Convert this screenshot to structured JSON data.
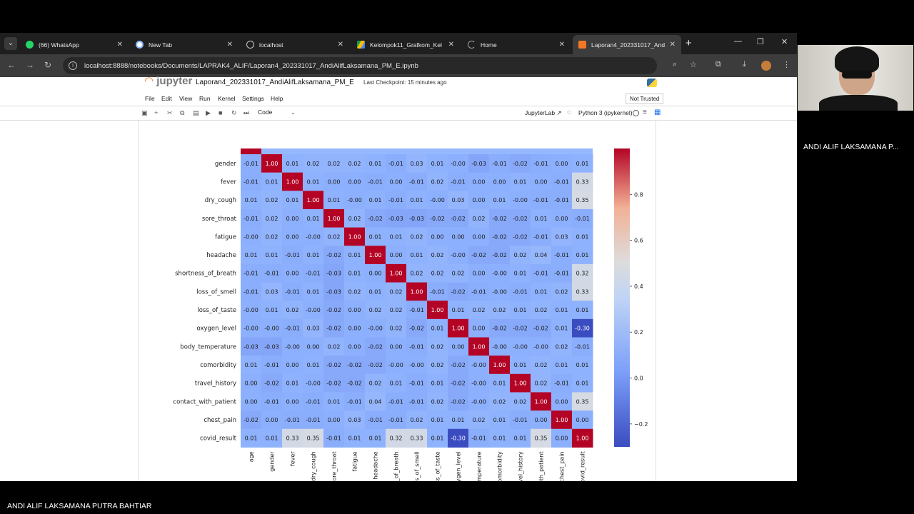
{
  "browser": {
    "tabs": [
      {
        "title": "(66) WhatsApp",
        "icon": "whatsapp-icon",
        "color": "#25d366",
        "badge": "66"
      },
      {
        "title": "New Tab",
        "icon": "chrome-icon",
        "color": "#8ab4f8"
      },
      {
        "title": "localhost",
        "icon": "globe-icon",
        "color": "#9aa0a6"
      },
      {
        "title": "Kelompok11_Grafkom_Kel",
        "icon": "drive-icon",
        "color": "#fbbc04"
      },
      {
        "title": "Home",
        "icon": "loading-icon",
        "color": "#9aa0a6"
      },
      {
        "title": "Laporan4_202331017_And",
        "icon": "jupyter-icon",
        "color": "#f37726"
      }
    ],
    "url": "localhost:8888/notebooks/Documents/LAPRAK4_ALIF/Laporan4_202331017_AndiAlifLaksamana_PM_E.ipynb"
  },
  "jupyter": {
    "logo_text": "jupyter",
    "notebook_title": "Laporan4_202331017_AndiAlifLaksamana_PM_E",
    "checkpoint": "Last Checkpoint: 15 minutes ago",
    "menu": [
      "File",
      "Edit",
      "View",
      "Run",
      "Kernel",
      "Settings",
      "Help"
    ],
    "trust_status": "Not Trusted",
    "cell_type": "Code",
    "jupyterlab_link": "JupyterLab",
    "kernel": "Python 3 (ipykernel)"
  },
  "chart_data": {
    "type": "heatmap",
    "colormap": "coolwarm",
    "labels": [
      "age",
      "gender",
      "fever",
      "dry_cough",
      "sore_throat",
      "fatigue",
      "headache",
      "shortness_of_breath",
      "loss_of_smell",
      "loss_of_taste",
      "oxygen_level",
      "body_temperature",
      "comorbidity",
      "travel_history",
      "contact_with_patient",
      "chest_pain",
      "covid_result"
    ],
    "row_labels": [
      "gender",
      "fever",
      "dry_cough",
      "sore_throat",
      "fatigue",
      "headache",
      "shortness_of_breath",
      "loss_of_smell",
      "loss_of_taste",
      "oxygen_level",
      "body_temperature",
      "comorbidity",
      "travel_history",
      "contact_with_patient",
      "chest_pain",
      "covid_result"
    ],
    "values": [
      [
        "-0.01",
        "1.00",
        "0.01",
        "0.02",
        "0.02",
        "0.02",
        "0.01",
        "-0.01",
        "0.03",
        "0.01",
        "-0.00",
        "-0.03",
        "-0.01",
        "-0.02",
        "-0.01",
        "0.00",
        "0.01"
      ],
      [
        "-0.01",
        "0.01",
        "1.00",
        "0.01",
        "0.00",
        "0.00",
        "-0.01",
        "0.00",
        "-0.01",
        "0.02",
        "-0.01",
        "0.00",
        "0.00",
        "0.01",
        "0.00",
        "-0.01",
        "0.33"
      ],
      [
        "0.01",
        "0.02",
        "0.01",
        "1.00",
        "0.01",
        "-0.00",
        "0.01",
        "-0.01",
        "0.01",
        "-0.00",
        "0.03",
        "0.00",
        "0.01",
        "-0.00",
        "-0.01",
        "-0.01",
        "0.35"
      ],
      [
        "-0.01",
        "0.02",
        "0.00",
        "0.01",
        "1.00",
        "0.02",
        "-0.02",
        "-0.03",
        "-0.03",
        "-0.02",
        "-0.02",
        "0.02",
        "-0.02",
        "-0.02",
        "0.01",
        "0.00",
        "-0.01"
      ],
      [
        "-0.00",
        "0.02",
        "0.00",
        "-0.00",
        "0.02",
        "1.00",
        "0.01",
        "0.01",
        "0.02",
        "0.00",
        "0.00",
        "0.00",
        "-0.02",
        "-0.02",
        "-0.01",
        "0.03",
        "0.01"
      ],
      [
        "0.01",
        "0.01",
        "-0.01",
        "0.01",
        "-0.02",
        "0.01",
        "1.00",
        "0.00",
        "0.01",
        "0.02",
        "-0.00",
        "-0.02",
        "-0.02",
        "0.02",
        "0.04",
        "-0.01",
        "0.01"
      ],
      [
        "-0.01",
        "-0.01",
        "0.00",
        "-0.01",
        "-0.03",
        "0.01",
        "0.00",
        "1.00",
        "0.02",
        "0.02",
        "0.02",
        "0.00",
        "-0.00",
        "0.01",
        "-0.01",
        "-0.01",
        "0.32"
      ],
      [
        "-0.01",
        "0.03",
        "-0.01",
        "0.01",
        "-0.03",
        "0.02",
        "0.01",
        "0.02",
        "1.00",
        "-0.01",
        "-0.02",
        "-0.01",
        "-0.00",
        "-0.01",
        "0.01",
        "0.02",
        "0.33"
      ],
      [
        "-0.00",
        "0.01",
        "0.02",
        "-0.00",
        "-0.02",
        "0.00",
        "0.02",
        "0.02",
        "-0.01",
        "1.00",
        "0.01",
        "0.02",
        "0.02",
        "0.01",
        "0.02",
        "0.01",
        "0.01"
      ],
      [
        "-0.00",
        "-0.00",
        "-0.01",
        "0.03",
        "-0.02",
        "0.00",
        "-0.00",
        "0.02",
        "-0.02",
        "0.01",
        "1.00",
        "0.00",
        "-0.02",
        "-0.02",
        "-0.02",
        "0.01",
        "-0.30"
      ],
      [
        "-0.03",
        "-0.03",
        "-0.00",
        "0.00",
        "0.02",
        "0.00",
        "-0.02",
        "0.00",
        "-0.01",
        "0.02",
        "0.00",
        "1.00",
        "-0.00",
        "-0.00",
        "-0.00",
        "0.02",
        "-0.01"
      ],
      [
        "0.01",
        "-0.01",
        "0.00",
        "0.01",
        "-0.02",
        "-0.02",
        "-0.02",
        "-0.00",
        "-0.00",
        "0.02",
        "-0.02",
        "-0.00",
        "1.00",
        "0.01",
        "0.02",
        "0.01",
        "0.01"
      ],
      [
        "0.00",
        "-0.02",
        "0.01",
        "-0.00",
        "-0.02",
        "-0.02",
        "0.02",
        "0.01",
        "-0.01",
        "0.01",
        "-0.02",
        "-0.00",
        "0.01",
        "1.00",
        "0.02",
        "-0.01",
        "0.01"
      ],
      [
        "0.00",
        "-0.01",
        "0.00",
        "-0.01",
        "0.01",
        "-0.01",
        "0.04",
        "-0.01",
        "-0.01",
        "0.02",
        "-0.02",
        "-0.00",
        "0.02",
        "0.02",
        "1.00",
        "0.00",
        "0.35"
      ],
      [
        "-0.02",
        "0.00",
        "-0.01",
        "-0.01",
        "0.00",
        "0.03",
        "-0.01",
        "-0.01",
        "0.02",
        "0.01",
        "0.01",
        "0.02",
        "0.01",
        "-0.01",
        "0.00",
        "1.00",
        "0.00"
      ],
      [
        "0.01",
        "0.01",
        "0.33",
        "0.35",
        "-0.01",
        "0.01",
        "0.01",
        "0.32",
        "0.33",
        "0.01",
        "-0.30",
        "-0.01",
        "0.01",
        "0.01",
        "0.35",
        "0.00",
        "1.00"
      ]
    ],
    "colorbar_ticks": [
      "0.8",
      "0.6",
      "0.4",
      "0.2",
      "0.0",
      "−0.2"
    ],
    "colorbar_range": [
      -0.3,
      1.0
    ]
  },
  "meeting": {
    "participant_name": "ANDI ALIF LAKSAMANA P...",
    "presenter_name": "ANDI ALIF LAKSAMANA PUTRA BAHTIAR"
  }
}
